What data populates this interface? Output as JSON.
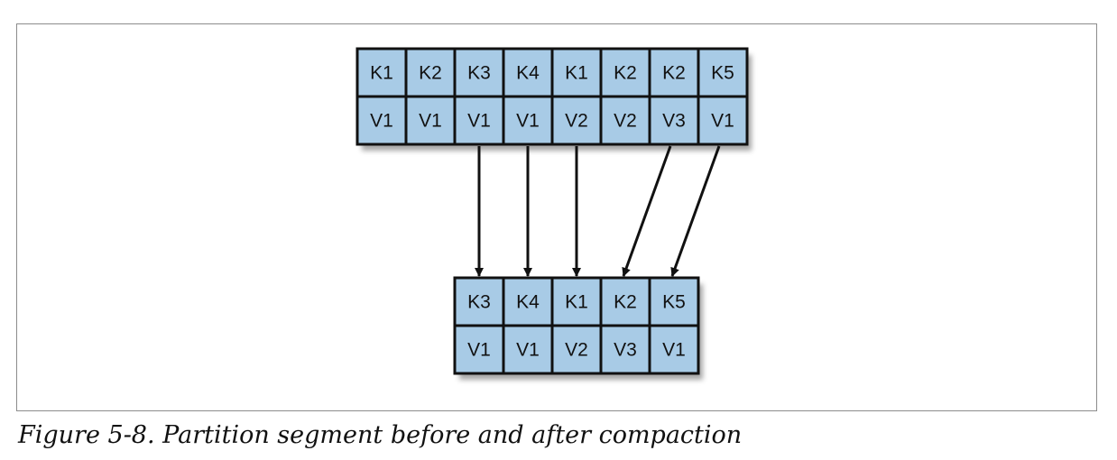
{
  "segments": {
    "before": {
      "keys": [
        "K1",
        "K2",
        "K3",
        "K4",
        "K1",
        "K2",
        "K2",
        "K5"
      ],
      "values": [
        "V1",
        "V1",
        "V1",
        "V1",
        "V2",
        "V2",
        "V3",
        "V1"
      ]
    },
    "after": {
      "keys": [
        "K3",
        "K4",
        "K1",
        "K2",
        "K5"
      ],
      "values": [
        "V1",
        "V1",
        "V2",
        "V3",
        "V1"
      ]
    }
  },
  "arrows": [
    {
      "from": 2,
      "to": 0
    },
    {
      "from": 3,
      "to": 1
    },
    {
      "from": 4,
      "to": 2
    },
    {
      "from": 6,
      "to": 3
    },
    {
      "from": 7,
      "to": 4
    }
  ],
  "colors": {
    "cell_fill": "#a8cbe6",
    "cell_border": "#111111",
    "arrow": "#111111"
  },
  "caption": "Figure 5-8. Partition segment before and after compaction"
}
